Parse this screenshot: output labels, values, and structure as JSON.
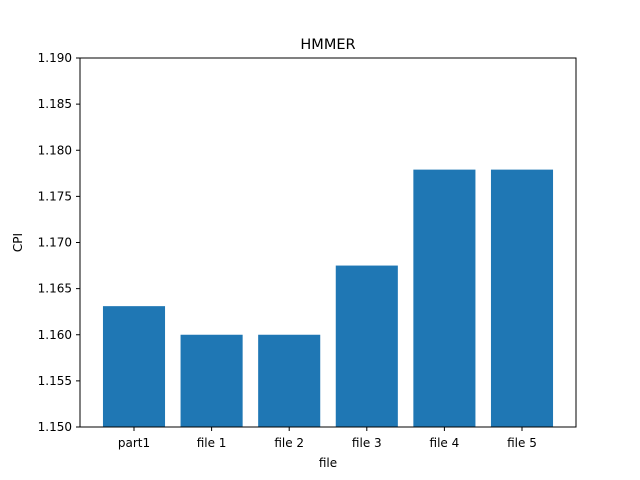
{
  "chart_data": {
    "type": "bar",
    "title": "HMMER",
    "xlabel": "file",
    "ylabel": "CPI",
    "categories": [
      "part1",
      "file 1",
      "file 2",
      "file 3",
      "file 4",
      "file 5"
    ],
    "values": [
      1.1631,
      1.16,
      1.16,
      1.1675,
      1.1779,
      1.1779
    ],
    "ylim": [
      1.15,
      1.19
    ],
    "yticks": [
      "1.150",
      "1.155",
      "1.160",
      "1.165",
      "1.170",
      "1.175",
      "1.180",
      "1.185",
      "1.190"
    ],
    "bar_color": "#1f77b4",
    "grid": false,
    "legend": "none"
  }
}
